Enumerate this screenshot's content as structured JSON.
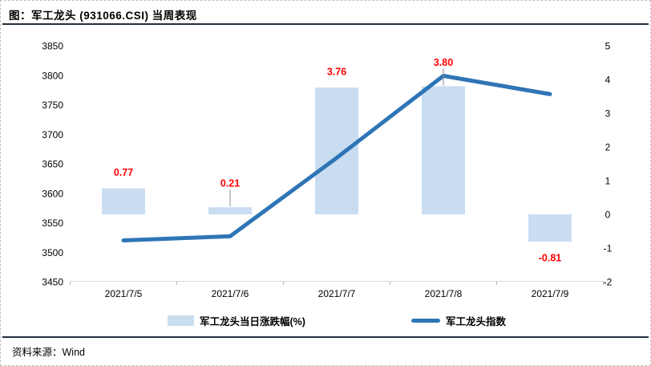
{
  "header": {
    "title": "图：军工龙头 (931066.CSI) 当周表现"
  },
  "footer": {
    "source": "资料来源：Wind"
  },
  "legend": [
    {
      "swatch": "bar-swatch",
      "label": "军工龙头当日涨跌幅(%)"
    },
    {
      "swatch": "line-swatch",
      "label": "军工龙头指数"
    }
  ],
  "colors": {
    "bar": "#c9ddf1",
    "line": "#2e75b6",
    "value_label": "#ff0000",
    "rule": "#222e3e",
    "axis_line": "#d9d9d9",
    "tick": "#b8b8b8",
    "leader": "#8c8c8c",
    "text": "#000000",
    "border": "#c3c3c3"
  },
  "chart_data": {
    "type": "bar",
    "subtype": "bar-line-combo",
    "categories": [
      "2021/7/5",
      "2021/7/6",
      "2021/7/7",
      "2021/7/8",
      "2021/7/9"
    ],
    "series": [
      {
        "name": "军工龙头当日涨跌幅(%)",
        "type": "bar",
        "axis": "right",
        "values": [
          0.77,
          0.21,
          3.76,
          3.8,
          -0.81
        ],
        "labels": [
          "0.77",
          "0.21",
          "3.76",
          "3.80",
          "-0.81"
        ],
        "callouts": [
          false,
          true,
          false,
          true,
          false
        ]
      },
      {
        "name": "军工龙头指数",
        "type": "line",
        "axis": "left",
        "values": [
          3520,
          3527,
          3660,
          3799,
          3768
        ]
      }
    ],
    "left_axis": {
      "min": 3450,
      "max": 3850,
      "step": 50,
      "tick_labels": [
        "3850",
        "3800",
        "3750",
        "3700",
        "3650",
        "3600",
        "3550",
        "3500",
        "3450"
      ]
    },
    "right_axis": {
      "min": -2,
      "max": 5,
      "step": 1,
      "tick_labels": [
        "5",
        "4",
        "3",
        "2",
        "1",
        "0",
        "-1",
        "-2"
      ]
    },
    "grid": false,
    "legend_position": "bottom"
  }
}
